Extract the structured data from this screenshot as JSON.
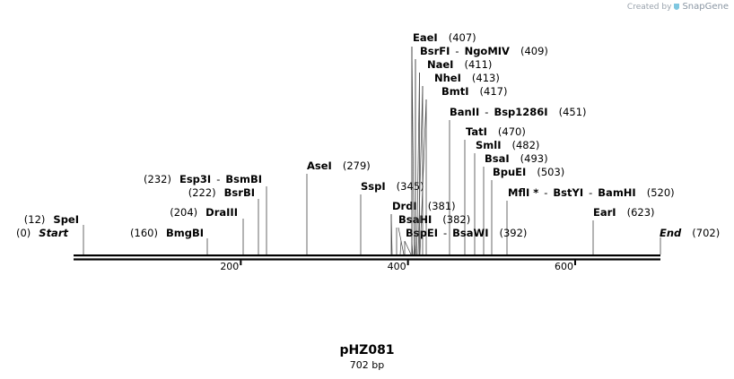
{
  "credit": {
    "prefix": "Created by",
    "brand": "SnapGene",
    "logo": "snapgene-logo-icon"
  },
  "sequence": {
    "name": "pHZ081",
    "length_label": "702 bp",
    "length": 702
  },
  "ticks": [
    {
      "pos": 200,
      "label": "200"
    },
    {
      "pos": 400,
      "label": "400"
    },
    {
      "pos": 600,
      "label": "600"
    }
  ],
  "sites": [
    {
      "name": "EaeI",
      "position": "(407)"
    },
    {
      "name": "BsrFI",
      "separator": "-",
      "name2": "NgoMIV",
      "position": "(409)"
    },
    {
      "name": "NaeI",
      "position": "(411)"
    },
    {
      "name": "NheI",
      "position": "(413)"
    },
    {
      "name": "BmtI",
      "position": "(417)"
    },
    {
      "name": "BanII",
      "separator": "-",
      "name2": "Bsp1286I",
      "position": "(451)"
    },
    {
      "name": "TatI",
      "position": "(470)"
    },
    {
      "name": "SmlI",
      "position": "(482)"
    },
    {
      "name": "BsaI",
      "position": "(493)"
    },
    {
      "name": "BpuEI",
      "position": "(503)"
    },
    {
      "name": "MflI",
      "marker": "*",
      "separator": "-",
      "name2": "BstYI",
      "separator2": "-",
      "name3": "BamHI",
      "position": "(520)"
    },
    {
      "name": "EarI",
      "position": "(623)"
    },
    {
      "name": "AseI",
      "position": "(279)"
    },
    {
      "name": "SspI",
      "position": "(345)"
    },
    {
      "name": "DrdI",
      "position": "(381)"
    },
    {
      "name": "BsaHI",
      "position": "(382)"
    },
    {
      "name": "BspEI",
      "separator": "-",
      "name2": "BsaWI",
      "position": "(392)"
    },
    {
      "name": "Esp3I",
      "separator": "-",
      "name2": "BsmBI",
      "position": "(232)"
    },
    {
      "name": "BsrBI",
      "position": "(222)"
    },
    {
      "name": "DraIII",
      "position": "(204)"
    },
    {
      "name": "BmgBI",
      "position": "(160)"
    },
    {
      "name": "SpeI",
      "position": "(12)"
    },
    {
      "name": "Start",
      "position": "(0)"
    },
    {
      "name": "End",
      "position": "(702)"
    }
  ]
}
